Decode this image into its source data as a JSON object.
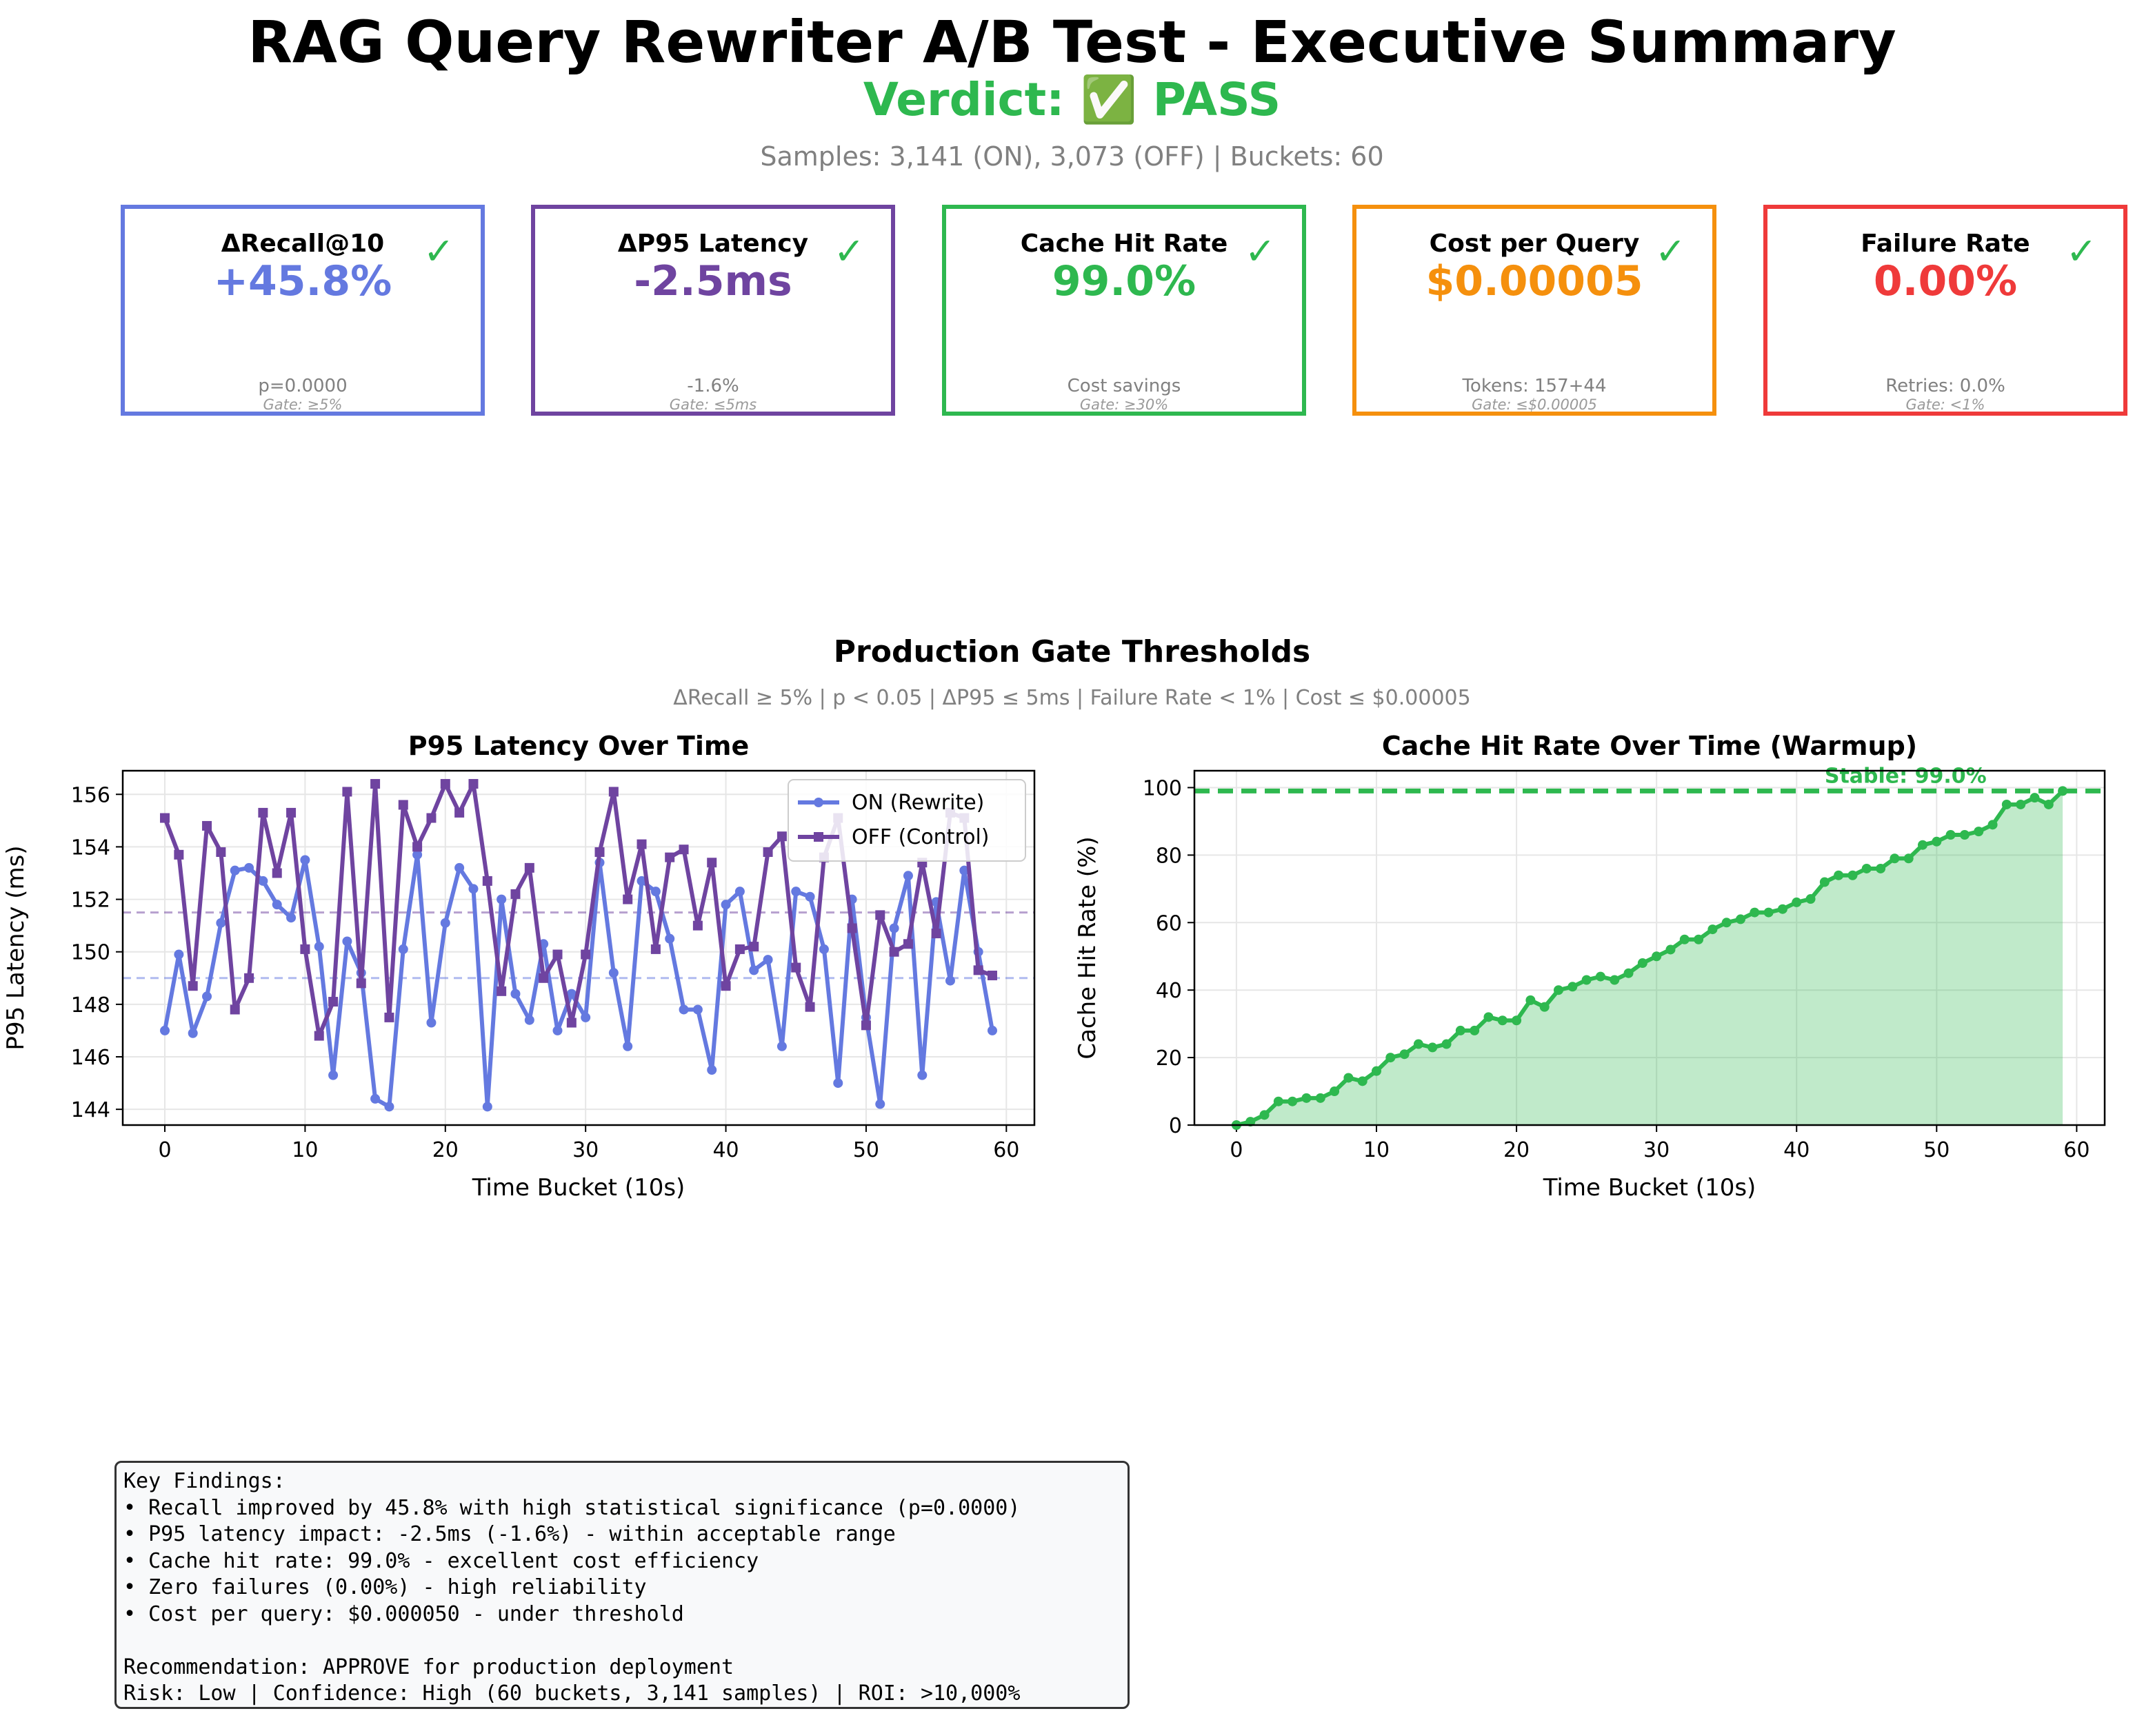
{
  "header": {
    "title": "RAG Query Rewriter A/B Test - Executive Summary",
    "verdict": "Verdict: ✅ PASS",
    "samples": "Samples: 3,141 (ON), 3,073 (OFF) | Buckets: 60"
  },
  "cards": [
    {
      "label": "ΔRecall@10",
      "value": "+45.8%",
      "check": "✓",
      "sub": "p=0.0000",
      "gate": "Gate: ≥5%",
      "color": "#6479e0"
    },
    {
      "label": "ΔP95 Latency",
      "value": "-2.5ms",
      "check": "✓",
      "sub": "-1.6%",
      "gate": "Gate: ≤5ms",
      "color": "#6f44a0"
    },
    {
      "label": "Cache Hit Rate",
      "value": "99.0%",
      "check": "✓",
      "sub": "Cost savings",
      "gate": "Gate: ≥30%",
      "color": "#2eb84f"
    },
    {
      "label": "Cost per Query",
      "value": "$0.00005",
      "check": "✓",
      "sub": "Tokens: 157+44",
      "gate": "Gate: ≤$0.00005",
      "color": "#f5900d"
    },
    {
      "label": "Failure Rate",
      "value": "0.00%",
      "check": "✓",
      "sub": "Retries: 0.0%",
      "gate": "Gate: <1%",
      "color": "#ef3a3a"
    }
  ],
  "gates": {
    "title": "Production Gate Thresholds",
    "subtitle": "ΔRecall ≥ 5% | p < 0.05 | ΔP95 ≤ 5ms | Failure Rate < 1% | Cost ≤ $0.00005"
  },
  "chart_data": [
    {
      "type": "line",
      "title": "P95 Latency Over Time",
      "xlabel": "Time Bucket (10s)",
      "ylabel": "P95 Latency (ms)",
      "xlim": [
        -3,
        62
      ],
      "ylim": [
        143.4,
        156.9
      ],
      "xticks": [
        0,
        10,
        20,
        30,
        40,
        50,
        60
      ],
      "yticks": [
        144,
        146,
        148,
        150,
        152,
        154,
        156
      ],
      "grid": true,
      "legend": "top-right",
      "x": [
        0,
        1,
        2,
        3,
        4,
        5,
        6,
        7,
        8,
        9,
        10,
        11,
        12,
        13,
        14,
        15,
        16,
        17,
        18,
        19,
        20,
        21,
        22,
        23,
        24,
        25,
        26,
        27,
        28,
        29,
        30,
        31,
        32,
        33,
        34,
        35,
        36,
        37,
        38,
        39,
        40,
        41,
        42,
        43,
        44,
        45,
        46,
        47,
        48,
        49,
        50,
        51,
        52,
        53,
        54,
        55,
        56,
        57,
        58,
        59
      ],
      "series": [
        {
          "name": "ON (Rewrite)",
          "color": "#6479e0",
          "marker": "circle",
          "mean": 149.0,
          "values": [
            147.0,
            149.9,
            146.9,
            148.3,
            151.1,
            153.1,
            153.2,
            152.7,
            151.8,
            151.3,
            153.5,
            150.2,
            145.3,
            150.4,
            149.2,
            144.4,
            144.1,
            150.1,
            153.7,
            147.3,
            151.1,
            153.2,
            152.4,
            144.1,
            152.0,
            148.4,
            147.4,
            150.3,
            147.0,
            148.4,
            147.5,
            153.4,
            149.2,
            146.4,
            152.7,
            152.3,
            150.5,
            147.8,
            147.8,
            145.5,
            151.8,
            152.3,
            149.3,
            149.7,
            146.4,
            152.3,
            152.1,
            150.1,
            145.0,
            152.0,
            147.5,
            144.2,
            150.9,
            152.9,
            145.3,
            151.9,
            148.9,
            153.1,
            150.0,
            147.0
          ]
        },
        {
          "name": "OFF (Control)",
          "color": "#6f44a0",
          "marker": "square",
          "mean": 151.5,
          "values": [
            155.1,
            153.7,
            148.7,
            154.8,
            153.8,
            147.8,
            149.0,
            155.3,
            153.0,
            155.3,
            150.1,
            146.8,
            148.1,
            156.1,
            148.8,
            156.4,
            147.5,
            155.6,
            154.0,
            155.1,
            156.4,
            155.3,
            156.4,
            152.7,
            148.5,
            152.2,
            153.2,
            149.0,
            149.9,
            147.3,
            149.9,
            153.8,
            156.1,
            152.0,
            154.1,
            150.1,
            153.6,
            153.9,
            151.0,
            153.4,
            148.7,
            150.1,
            150.2,
            153.8,
            154.4,
            149.4,
            147.9,
            153.6,
            155.1,
            150.9,
            147.2,
            151.4,
            150.0,
            150.3,
            153.4,
            150.7,
            155.3,
            155.1,
            149.3,
            149.1
          ]
        }
      ]
    },
    {
      "type": "area",
      "title": "Cache Hit Rate Over Time (Warmup)",
      "xlabel": "Time Bucket (10s)",
      "ylabel": "Cache Hit Rate (%)",
      "xlim": [
        -3,
        62
      ],
      "ylim": [
        0,
        105
      ],
      "xticks": [
        0,
        10,
        20,
        30,
        40,
        50,
        60
      ],
      "yticks": [
        0,
        20,
        40,
        60,
        80,
        100
      ],
      "grid": true,
      "color": "#2eb84f",
      "stable_line": 99.0,
      "annotation": "Stable: 99.0%",
      "x": [
        0,
        1,
        2,
        3,
        4,
        5,
        6,
        7,
        8,
        9,
        10,
        11,
        12,
        13,
        14,
        15,
        16,
        17,
        18,
        19,
        20,
        21,
        22,
        23,
        24,
        25,
        26,
        27,
        28,
        29,
        30,
        31,
        32,
        33,
        34,
        35,
        36,
        37,
        38,
        39,
        40,
        41,
        42,
        43,
        44,
        45,
        46,
        47,
        48,
        49,
        50,
        51,
        52,
        53,
        54,
        55,
        56,
        57,
        58,
        59
      ],
      "values": [
        0,
        1,
        3,
        7,
        7,
        8,
        8,
        10,
        14,
        13,
        16,
        20,
        21,
        24,
        23,
        24,
        28,
        28,
        32,
        31,
        31,
        37,
        35,
        40,
        41,
        43,
        44,
        43,
        45,
        48,
        50,
        52,
        55,
        55,
        58,
        60,
        61,
        63,
        63,
        64,
        66,
        67,
        72,
        74,
        74,
        76,
        76,
        79,
        79,
        83,
        84,
        86,
        86,
        87,
        89,
        95,
        95,
        97,
        95,
        99
      ]
    }
  ],
  "findings": {
    "lines": [
      "Key Findings:",
      "• Recall improved by 45.8% with high statistical significance (p=0.0000)",
      "• P95 latency impact: -2.5ms (-1.6%) - within acceptable range",
      "• Cache hit rate: 99.0% - excellent cost efficiency",
      "• Zero failures (0.00%) - high reliability",
      "• Cost per query: $0.000050 - under threshold",
      "",
      "Recommendation: APPROVE for production deployment",
      "Risk: Low | Confidence: High (60 buckets, 3,141 samples) | ROI: >10,000%"
    ]
  }
}
